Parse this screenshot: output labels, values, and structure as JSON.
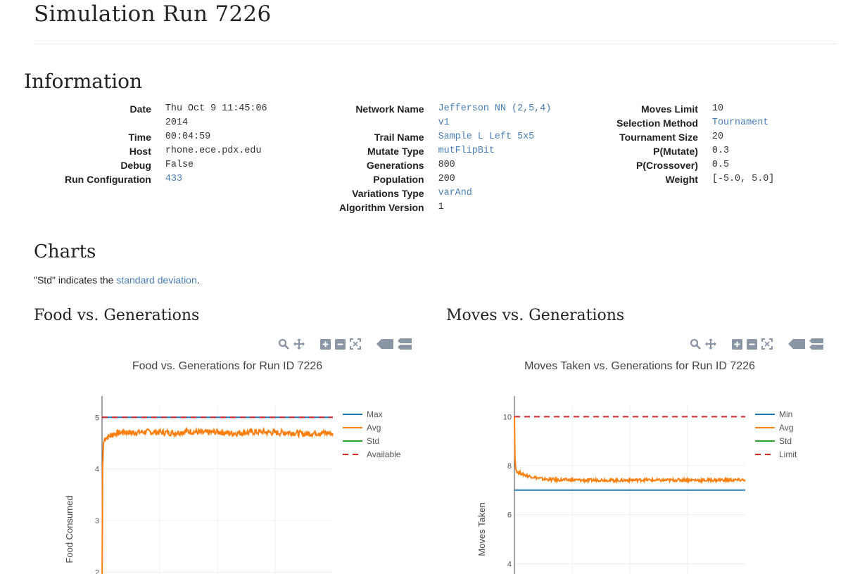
{
  "page": {
    "title": "Simulation Run 7226",
    "info_heading": "Information",
    "charts_heading": "Charts",
    "note_prefix": "\"Std\" indicates the ",
    "note_link": "standard deviation",
    "note_suffix": "."
  },
  "info": {
    "col1": [
      {
        "label": "Date",
        "value": "Thu Oct 9 11:45:06 2014"
      },
      {
        "label": "Time",
        "value": "00:04:59"
      },
      {
        "label": "Host",
        "value": "rhone.ece.pdx.edu"
      },
      {
        "label": "Debug",
        "value": "False"
      },
      {
        "label": "Run Configuration",
        "value": "433"
      }
    ],
    "col2": [
      {
        "label": "Network Name",
        "value": "Jefferson NN (2,5,4) v1"
      },
      {
        "label": "Trail Name",
        "value": "Sample L Left 5x5"
      },
      {
        "label": "Mutate Type",
        "value": "mutFlipBit"
      },
      {
        "label": "Generations",
        "value": "800"
      },
      {
        "label": "Population",
        "value": "200"
      },
      {
        "label": "Variations Type",
        "value": "varAnd"
      },
      {
        "label": "Algorithm Version",
        "value": "1"
      }
    ],
    "col3": [
      {
        "label": "Moves Limit",
        "value": "10"
      },
      {
        "label": "Selection Method",
        "value": "Tournament"
      },
      {
        "label": "Tournament Size",
        "value": "20"
      },
      {
        "label": "P(Mutate)",
        "value": "0.3"
      },
      {
        "label": "P(Crossover)",
        "value": "0.5"
      },
      {
        "label": "Weight",
        "value": "[-5.0, 5.0]"
      }
    ]
  },
  "charts": {
    "food": {
      "heading": "Food vs. Generations"
    },
    "moves": {
      "heading": "Moves vs. Generations"
    }
  },
  "modebar_icons": [
    "zoom-icon",
    "pan-icon",
    "zoom-in-icon",
    "zoom-out-icon",
    "autoscale-icon",
    "hover-closest-icon",
    "hover-compare-icon"
  ],
  "colors": {
    "blue": "#1f77b4",
    "orange": "#ff7f0e",
    "green": "#2ca02c",
    "red": "#d62728",
    "link": "#4a7fb4"
  },
  "chart_data": [
    {
      "type": "line",
      "title": "Food vs. Generations for Run ID 7226",
      "xlabel": "",
      "ylabel": "Food Consumed",
      "ylim": [
        1.5,
        5.25
      ],
      "xlim": [
        0,
        800
      ],
      "yticks": [
        2,
        3,
        4,
        5
      ],
      "grid": true,
      "legend_position": "top-right",
      "series": [
        {
          "name": "Max",
          "x": [
            0,
            800
          ],
          "y": [
            5,
            5
          ],
          "color": "#1f77b4",
          "dash": "solid"
        },
        {
          "name": "Avg",
          "x": [
            0,
            2,
            5,
            10,
            20,
            40,
            60,
            80,
            100,
            150,
            200,
            250,
            300,
            350,
            400,
            450,
            500,
            550,
            600,
            650,
            700,
            750,
            800
          ],
          "y": [
            1.5,
            4.0,
            4.5,
            4.6,
            4.62,
            4.68,
            4.7,
            4.72,
            4.7,
            4.72,
            4.71,
            4.7,
            4.73,
            4.7,
            4.72,
            4.69,
            4.71,
            4.72,
            4.7,
            4.71,
            4.68,
            4.7,
            4.69
          ],
          "color": "#ff7f0e",
          "dash": "solid"
        },
        {
          "name": "Std",
          "x": [],
          "y": [],
          "color": "#2ca02c",
          "dash": "solid"
        },
        {
          "name": "Available",
          "x": [
            0,
            800
          ],
          "y": [
            5,
            5
          ],
          "color": "#d62728",
          "dash": "dash"
        }
      ]
    },
    {
      "type": "line",
      "title": "Moves Taken vs. Generations for Run ID 7226",
      "xlabel": "",
      "ylabel": "Moves Taken",
      "ylim": [
        2.6,
        10.5
      ],
      "xlim": [
        0,
        800
      ],
      "yticks": [
        4,
        6,
        8,
        10
      ],
      "grid": true,
      "legend_position": "top-right",
      "series": [
        {
          "name": "Min",
          "x": [
            0,
            800
          ],
          "y": [
            7,
            7
          ],
          "color": "#1f77b4",
          "dash": "solid"
        },
        {
          "name": "Avg",
          "x": [
            0,
            2,
            5,
            10,
            20,
            40,
            60,
            80,
            100,
            150,
            200,
            250,
            300,
            350,
            400,
            450,
            500,
            550,
            600,
            650,
            700,
            750,
            800
          ],
          "y": [
            10,
            8.3,
            7.85,
            7.75,
            7.7,
            7.6,
            7.55,
            7.5,
            7.45,
            7.42,
            7.42,
            7.4,
            7.42,
            7.4,
            7.41,
            7.42,
            7.4,
            7.41,
            7.42,
            7.4,
            7.42,
            7.41,
            7.42
          ],
          "color": "#ff7f0e",
          "dash": "solid"
        },
        {
          "name": "Std",
          "x": [],
          "y": [],
          "color": "#2ca02c",
          "dash": "solid"
        },
        {
          "name": "Limit",
          "x": [
            0,
            800
          ],
          "y": [
            10,
            10
          ],
          "color": "#d62728",
          "dash": "dash"
        }
      ]
    }
  ]
}
